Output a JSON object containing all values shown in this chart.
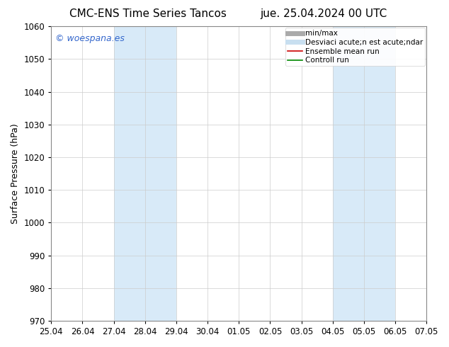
{
  "title_left": "CMC-ENS Time Series Tancos",
  "title_right": "jue. 25.04.2024 00 UTC",
  "ylabel": "Surface Pressure (hPa)",
  "ylim": [
    970,
    1060
  ],
  "yticks": [
    970,
    980,
    990,
    1000,
    1010,
    1020,
    1030,
    1040,
    1050,
    1060
  ],
  "xtick_labels": [
    "25.04",
    "26.04",
    "27.04",
    "28.04",
    "29.04",
    "30.04",
    "01.05",
    "02.05",
    "03.05",
    "04.05",
    "05.05",
    "06.05",
    "07.05"
  ],
  "watermark": "© woespana.es",
  "watermark_color": "#3366cc",
  "bg_color": "#ffffff",
  "plot_bg_color": "#ffffff",
  "shaded_regions": [
    {
      "xstart": 2.0,
      "xend": 4.0,
      "color": "#d8eaf8"
    },
    {
      "xstart": 9.0,
      "xend": 11.0,
      "color": "#d8eaf8"
    }
  ],
  "legend_labels": [
    "min/max",
    "Desviaci acute;n est acute;ndar",
    "Ensemble mean run",
    "Controll run"
  ],
  "legend_colors": [
    "#aaaaaa",
    "#c8dff0",
    "#cc0000",
    "#008800"
  ],
  "legend_lws": [
    5,
    5,
    1.2,
    1.2
  ],
  "grid_color": "#cccccc",
  "spine_color": "#888888",
  "tick_fontsize": 8.5,
  "ylabel_fontsize": 9,
  "title_fontsize": 11,
  "legend_fontsize": 7.5
}
